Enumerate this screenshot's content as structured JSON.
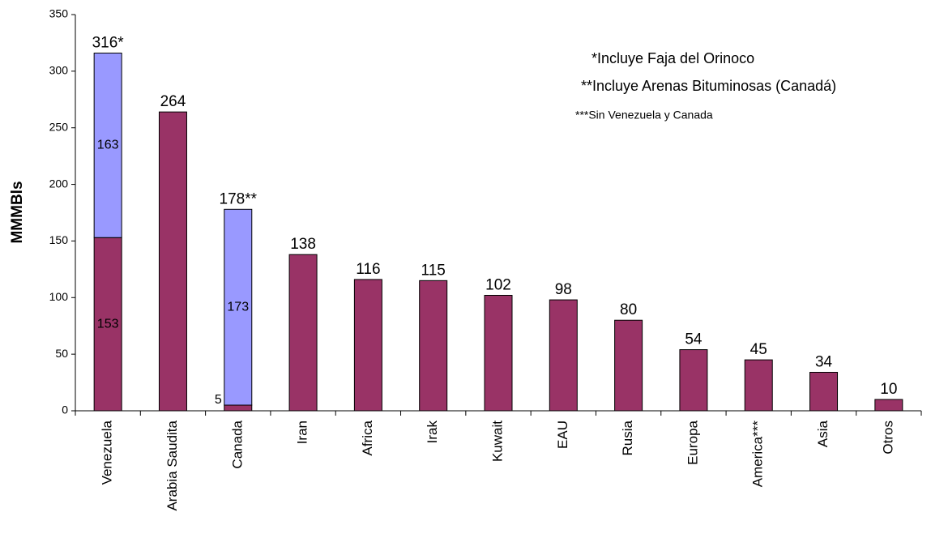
{
  "chart_data": {
    "type": "stacked_bar",
    "y_label": "MMMBls",
    "categories": [
      "Venezuela",
      "Arabia Saudita",
      "Canada",
      "Iran",
      "Africa",
      "Irak",
      "Kuwait",
      "EAU",
      "Rusia",
      "Europa",
      "America***",
      "Asia",
      "Otros"
    ],
    "series": [
      {
        "color": "#993366",
        "values": [
          153,
          264,
          5,
          138,
          116,
          115,
          102,
          98,
          80,
          54,
          45,
          34,
          10
        ]
      },
      {
        "color": "#9999ff",
        "values": [
          163,
          null,
          173,
          null,
          null,
          null,
          null,
          null,
          null,
          null,
          null,
          null,
          null
        ]
      }
    ],
    "total_labels": [
      "316*",
      "264",
      "178**",
      "138",
      "116",
      "115",
      "102",
      "98",
      "80",
      "54",
      "45",
      "34",
      "10"
    ],
    "annotations": [
      "*Incluye Faja del Orinoco",
      "**Incluye Arenas Bituminosas (Canadá)",
      "***Sin Venezuela y Canada"
    ],
    "ylim": [
      0,
      350
    ],
    "yticks": [
      0,
      50,
      100,
      150,
      200,
      250,
      300,
      350
    ]
  }
}
